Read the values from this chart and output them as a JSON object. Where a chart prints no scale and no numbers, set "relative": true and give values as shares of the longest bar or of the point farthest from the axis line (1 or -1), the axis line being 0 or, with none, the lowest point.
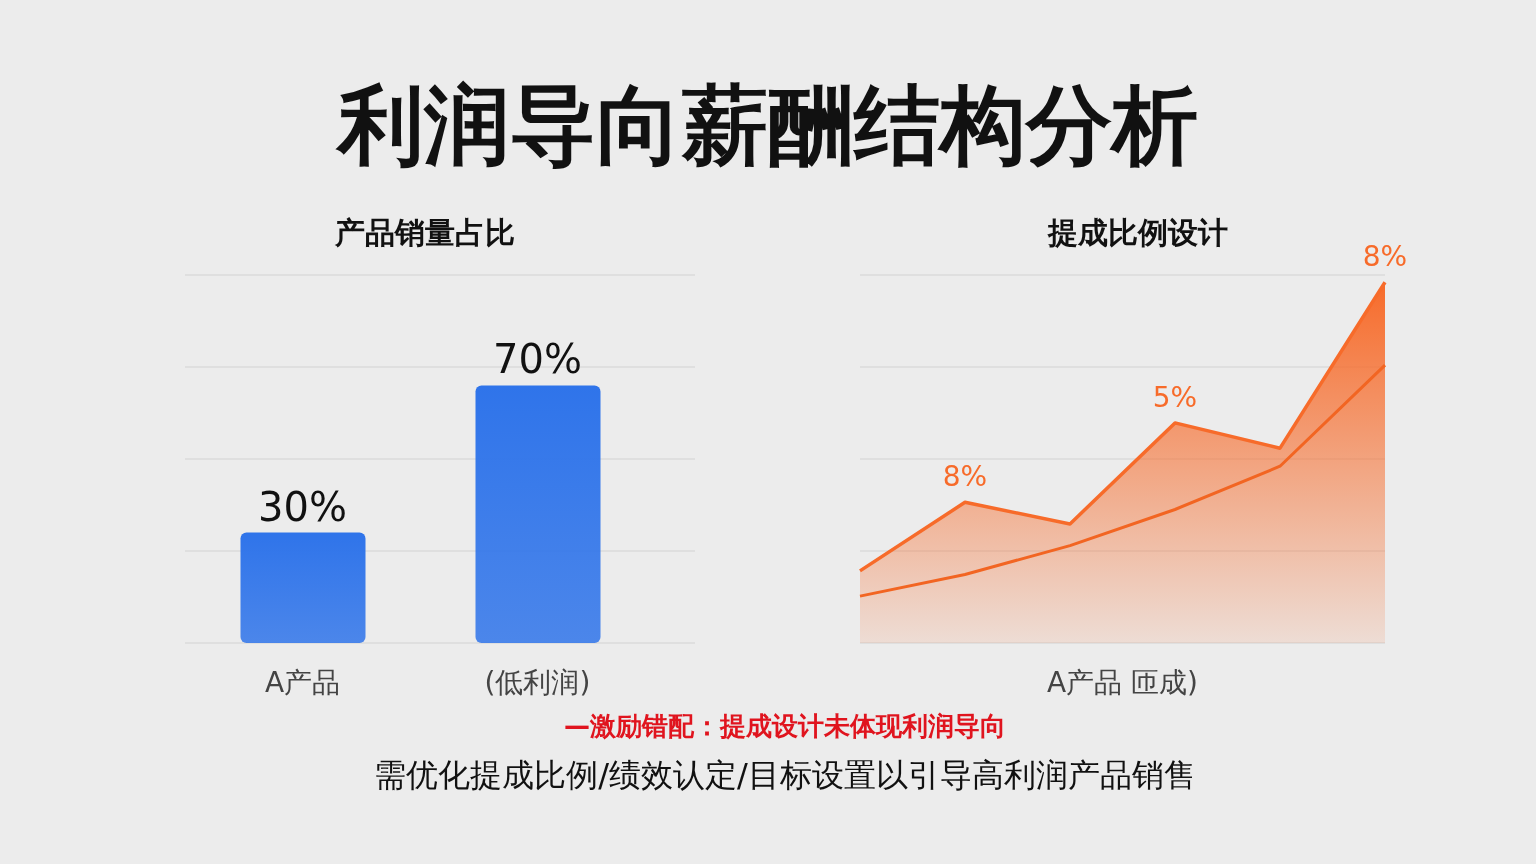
{
  "chart_data": [
    {
      "type": "other",
      "title": "利润导向薪酬结构分析",
      "annotations": [
        "—激励错配：提成设计未体现利润导向",
        "需优化提成比例/绩效认定/目标设置以引导高利润产品销售"
      ]
    },
    {
      "type": "bar",
      "title": "产品销量占比",
      "categories": [
        "A产品",
        "(低利润)"
      ],
      "grid": "y",
      "ylim": [
        0,
        100
      ],
      "yticks": [
        {
          "value": 0,
          "label": null
        },
        {
          "value": 25,
          "label": null
        },
        {
          "value": 50,
          "label": null
        },
        {
          "value": 75,
          "label": null
        },
        {
          "value": 100,
          "label": null
        }
      ],
      "series": [
        {
          "color": "#2f74ea",
          "values": [
            30,
            70
          ],
          "value_labels": [
            "30%",
            "70%"
          ]
        }
      ]
    },
    {
      "type": "area",
      "title": "提成比例设计",
      "xlabel": "A产品 匝成)",
      "categories": [
        null,
        null,
        null,
        null,
        null,
        null
      ],
      "relative": true,
      "grid": "y",
      "annotations": [
        "8%",
        "5%",
        "8%"
      ],
      "series": [
        {
          "type": "area",
          "color": "#f76b2a",
          "values": [
            0.2,
            0.39,
            0.33,
            0.61,
            0.54,
            1
          ]
        },
        {
          "type": "line",
          "color": "#f26522",
          "values": [
            0.13,
            0.19,
            0.27,
            0.37,
            0.49,
            0.77
          ]
        }
      ]
    }
  ]
}
